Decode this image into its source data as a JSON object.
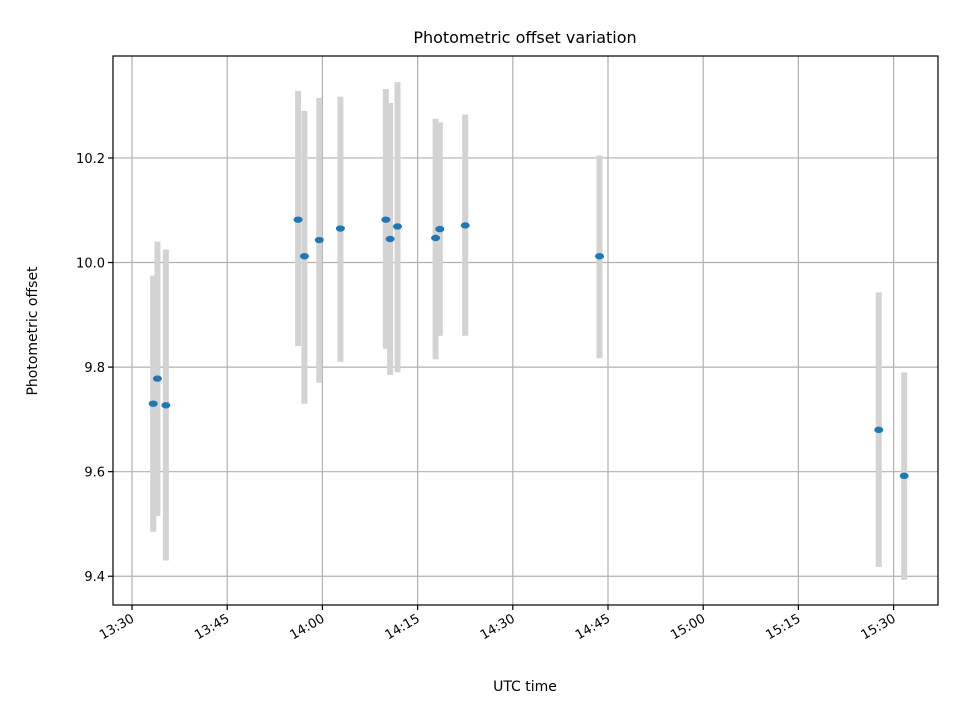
{
  "chart_data": {
    "type": "scatter",
    "title": "Photometric offset variation",
    "xlabel": "UTC time",
    "ylabel": "Photometric offset",
    "x_ticks": [
      "13:30",
      "13:45",
      "14:00",
      "14:15",
      "14:30",
      "14:45",
      "15:00",
      "15:15",
      "15:30"
    ],
    "y_ticks": [
      "9.4",
      "9.6",
      "9.8",
      "10.0",
      "10.2"
    ],
    "xlim": [
      "13:27",
      "15:37"
    ],
    "ylim": [
      9.345,
      10.395
    ],
    "grid": true,
    "legend": "none",
    "colors": {
      "points": "#1f77b4",
      "errorbars": "#d3d3d3",
      "grid": "#b0b0b0"
    },
    "points": [
      {
        "x": "13:33:20",
        "y": 9.73,
        "err": [
          9.485,
          9.975
        ]
      },
      {
        "x": "13:34:00",
        "y": 9.778,
        "err": [
          9.515,
          10.04
        ]
      },
      {
        "x": "13:35:20",
        "y": 9.727,
        "err": [
          9.43,
          10.025
        ]
      },
      {
        "x": "13:56:10",
        "y": 10.082,
        "err": [
          9.84,
          10.328
        ]
      },
      {
        "x": "13:57:10",
        "y": 10.012,
        "err": [
          9.73,
          10.29
        ]
      },
      {
        "x": "13:59:30",
        "y": 10.043,
        "err": [
          9.77,
          10.315
        ]
      },
      {
        "x": "14:02:50",
        "y": 10.065,
        "err": [
          9.81,
          10.317
        ]
      },
      {
        "x": "14:10:00",
        "y": 10.082,
        "err": [
          9.835,
          10.332
        ]
      },
      {
        "x": "14:10:40",
        "y": 10.045,
        "err": [
          9.785,
          10.305
        ]
      },
      {
        "x": "14:11:50",
        "y": 10.069,
        "err": [
          9.79,
          10.345
        ]
      },
      {
        "x": "14:17:50",
        "y": 10.047,
        "err": [
          9.815,
          10.275
        ]
      },
      {
        "x": "14:18:30",
        "y": 10.064,
        "err": [
          9.86,
          10.268
        ]
      },
      {
        "x": "14:22:30",
        "y": 10.071,
        "err": [
          9.86,
          10.283
        ]
      },
      {
        "x": "14:43:40",
        "y": 10.012,
        "err": [
          9.817,
          10.205
        ]
      },
      {
        "x": "15:27:40",
        "y": 9.68,
        "err": [
          9.418,
          9.943
        ]
      },
      {
        "x": "15:31:40",
        "y": 9.592,
        "err": [
          9.393,
          9.79
        ]
      }
    ]
  }
}
